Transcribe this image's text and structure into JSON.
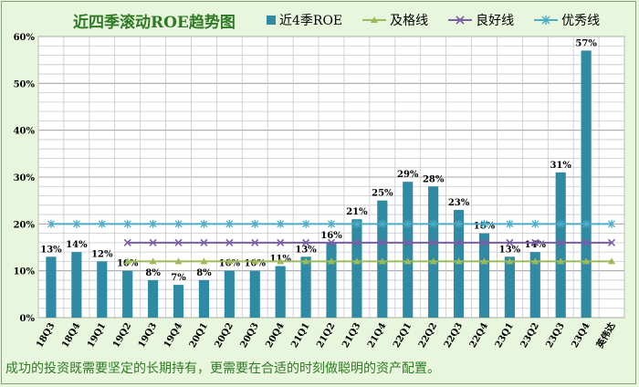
{
  "chart_data": {
    "type": "bar",
    "title": "近四季滚动ROE趋势图",
    "categories": [
      "18Q3",
      "18Q4",
      "19Q1",
      "19Q2",
      "19Q3",
      "19Q4",
      "20Q1",
      "20Q2",
      "20Q3",
      "20Q4",
      "21Q1",
      "21Q2",
      "21Q3",
      "21Q4",
      "22Q1",
      "22Q2",
      "22Q3",
      "22Q4",
      "23Q1",
      "23Q2",
      "23Q3",
      "23Q4",
      "英伟达"
    ],
    "series": [
      {
        "name": "近4季ROE",
        "kind": "bar",
        "color": "#2f8aa3",
        "values": [
          13,
          14,
          12,
          10,
          8,
          7,
          8,
          10,
          10,
          11,
          13,
          16,
          21,
          25,
          29,
          28,
          23,
          18,
          13,
          14,
          31,
          57,
          null
        ],
        "labels": [
          "13%",
          "14%",
          "12%",
          "10%",
          "8%",
          "7%",
          "8%",
          "10%",
          "10%",
          "11%",
          "13%",
          "16%",
          "21%",
          "25%",
          "29%",
          "28%",
          "23%",
          "18%",
          "13%",
          "14%",
          "31%",
          "57%",
          ""
        ]
      },
      {
        "name": "及格线",
        "kind": "line",
        "marker": "triangle",
        "color": "#9bbb59",
        "values": [
          null,
          null,
          null,
          12,
          12,
          12,
          12,
          12,
          12,
          12,
          12,
          12,
          12,
          12,
          12,
          12,
          12,
          12,
          12,
          12,
          12,
          12,
          12
        ]
      },
      {
        "name": "良好线",
        "kind": "line",
        "marker": "x",
        "color": "#7a5ca5",
        "values": [
          null,
          null,
          null,
          16,
          16,
          16,
          16,
          16,
          16,
          16,
          16,
          16,
          16,
          16,
          16,
          16,
          16,
          16,
          16,
          16,
          16,
          16,
          16
        ]
      },
      {
        "name": "优秀线",
        "kind": "line",
        "marker": "star",
        "color": "#4bacc6",
        "values": [
          20,
          20,
          20,
          20,
          20,
          20,
          20,
          20,
          20,
          20,
          20,
          20,
          20,
          20,
          20,
          20,
          20,
          20,
          20,
          20,
          20,
          20,
          20
        ]
      }
    ],
    "yticks": [
      "0%",
      "10%",
      "20%",
      "30%",
      "40%",
      "50%",
      "60%"
    ],
    "ylim": [
      0,
      60
    ],
    "grid": true,
    "legend_position": "top"
  },
  "footnote": "成功的投资既需要坚定的长期持有，更需要在合适的时刻做聪明的资产配置。"
}
